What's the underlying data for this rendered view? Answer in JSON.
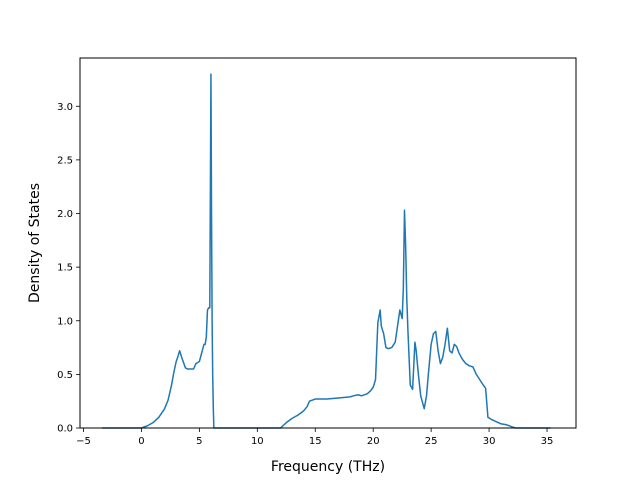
{
  "chart_data": {
    "type": "line",
    "title": "",
    "xlabel": "Frequency (THz)",
    "ylabel": "Density of States",
    "xlim": [
      -5.3,
      37.5
    ],
    "ylim": [
      0.0,
      3.45
    ],
    "xticks": [
      -5,
      0,
      5,
      10,
      15,
      20,
      25,
      30,
      35
    ],
    "yticks": [
      0.0,
      0.5,
      1.0,
      1.5,
      2.0,
      2.5,
      3.0
    ],
    "xtick_labels": [
      "−5",
      "0",
      "5",
      "10",
      "15",
      "20",
      "25",
      "30",
      "35"
    ],
    "ytick_labels": [
      "0.0",
      "0.5",
      "1.0",
      "1.5",
      "2.0",
      "2.5",
      "3.0"
    ],
    "grid": false,
    "legend": "none",
    "line_color": "#1f77b4",
    "series": [
      {
        "x": [
          -3.4,
          -1.0,
          0.0,
          0.5,
          1.0,
          1.5,
          2.0,
          2.3,
          2.6,
          2.8,
          3.0,
          3.1,
          3.3,
          3.5,
          3.8,
          4.0,
          4.2,
          4.5,
          4.7,
          5.0,
          5.2,
          5.4,
          5.5,
          5.6,
          5.7,
          5.8,
          5.9,
          6.0,
          6.05,
          6.1,
          6.15,
          6.2,
          6.25,
          6.3,
          6.4,
          8.0,
          10.0,
          12.0,
          12.5,
          13.0,
          13.5,
          14.0,
          14.3,
          14.5,
          15.0,
          16.0,
          17.0,
          18.0,
          18.3,
          18.7,
          19.0,
          19.5,
          19.8,
          20.0,
          20.2,
          20.4,
          20.5,
          20.6,
          20.7,
          20.9,
          21.1,
          21.3,
          21.6,
          21.9,
          22.1,
          22.3,
          22.5,
          22.6,
          22.7,
          22.8,
          22.9,
          23.0,
          23.2,
          23.4,
          23.6,
          23.7,
          23.9,
          24.1,
          24.4,
          24.6,
          24.8,
          25.0,
          25.2,
          25.4,
          25.6,
          25.8,
          26.0,
          26.2,
          26.4,
          26.6,
          26.8,
          27.0,
          27.2,
          27.4,
          27.7,
          28.0,
          28.3,
          28.6,
          28.9,
          29.2,
          29.5,
          29.7,
          29.9,
          30.2,
          30.6,
          31.0,
          31.5,
          32.0,
          32.3,
          33.0,
          34.0,
          35.0,
          35.3
        ],
        "y": [
          0.0,
          0.0,
          0.0,
          0.02,
          0.05,
          0.1,
          0.18,
          0.26,
          0.4,
          0.52,
          0.62,
          0.65,
          0.72,
          0.65,
          0.56,
          0.55,
          0.55,
          0.55,
          0.6,
          0.62,
          0.7,
          0.78,
          0.78,
          0.85,
          1.1,
          1.12,
          1.12,
          3.3,
          2.0,
          1.0,
          0.5,
          0.2,
          0.0,
          0.0,
          0.0,
          0.0,
          0.0,
          0.0,
          0.05,
          0.09,
          0.12,
          0.16,
          0.2,
          0.25,
          0.27,
          0.27,
          0.28,
          0.29,
          0.3,
          0.31,
          0.3,
          0.32,
          0.35,
          0.38,
          0.45,
          0.98,
          1.04,
          1.1,
          0.95,
          0.88,
          0.75,
          0.74,
          0.75,
          0.8,
          0.95,
          1.1,
          1.02,
          1.3,
          2.03,
          1.7,
          1.2,
          0.9,
          0.4,
          0.36,
          0.8,
          0.73,
          0.5,
          0.3,
          0.18,
          0.3,
          0.55,
          0.78,
          0.88,
          0.9,
          0.72,
          0.6,
          0.66,
          0.78,
          0.93,
          0.72,
          0.7,
          0.78,
          0.76,
          0.7,
          0.64,
          0.6,
          0.58,
          0.57,
          0.5,
          0.45,
          0.4,
          0.37,
          0.1,
          0.08,
          0.06,
          0.04,
          0.03,
          0.01,
          0.0,
          0.0,
          0.0,
          0.0,
          0.0
        ]
      }
    ]
  }
}
